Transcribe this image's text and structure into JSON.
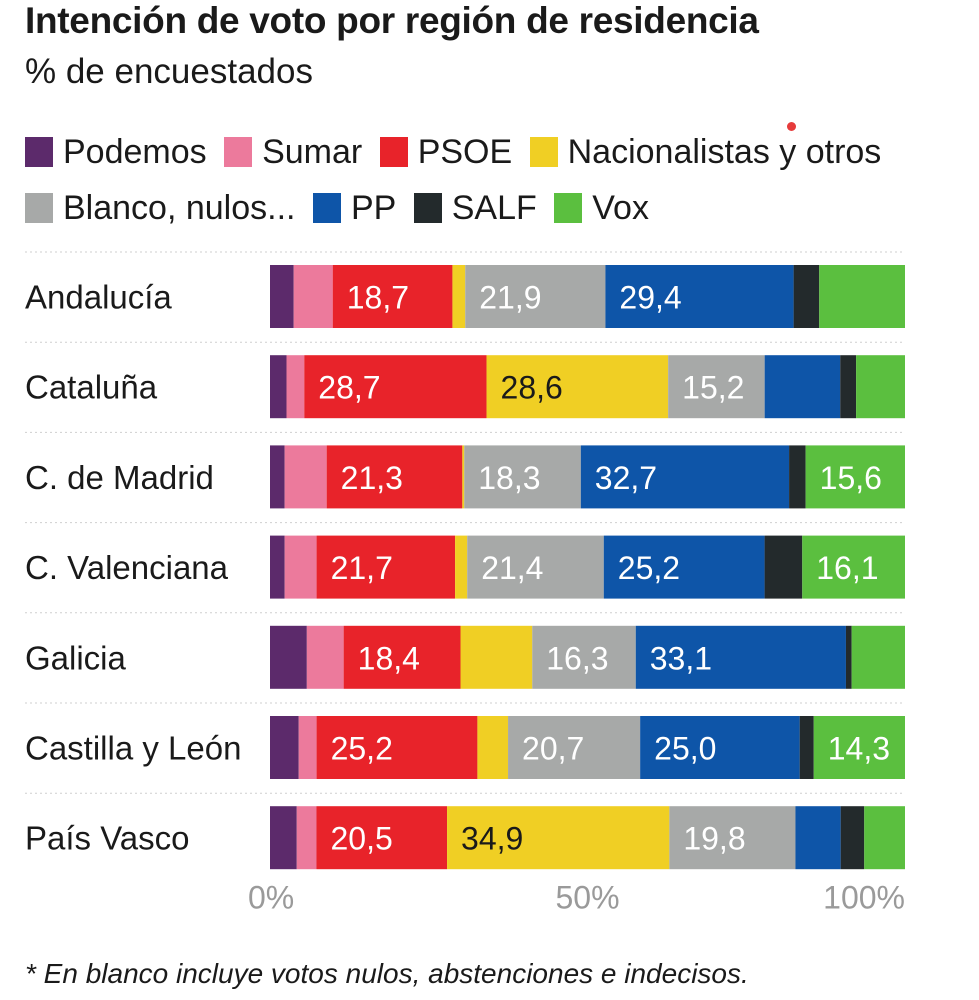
{
  "title": "Intención de voto por región de residencia",
  "subtitle": "% de encuestados",
  "footnote": "* En blanco incluye votos nulos, abstenciones e indecisos.",
  "legend": [
    {
      "label": "Podemos",
      "color": "#5c2a6b"
    },
    {
      "label": "Sumar",
      "color": "#ec7a9c"
    },
    {
      "label": "PSOE",
      "color": "#e8232a"
    },
    {
      "label": "Nacionalistas y otros",
      "color": "#f0cf24"
    },
    {
      "label": "Blanco, nulos...",
      "color": "#a7a9a8"
    },
    {
      "label": "PP",
      "color": "#0e55a8"
    },
    {
      "label": "SALF",
      "color": "#232a2c"
    },
    {
      "label": "Vox",
      "color": "#5bbf3f"
    }
  ],
  "chart_data": {
    "type": "bar",
    "orientation": "horizontal",
    "stacked": true,
    "title": "Intención de voto por región de residencia",
    "subtitle": "% de encuestados",
    "categories": [
      "Andalucía",
      "Cataluña",
      "C. de Madrid",
      "C. Valenciana",
      "Galicia",
      "Castilla y León",
      "País Vasco"
    ],
    "xlim": [
      0,
      100
    ],
    "ticks": [
      0,
      50,
      100
    ],
    "tick_labels": [
      "0%",
      "50%",
      "100%"
    ],
    "series": [
      {
        "name": "Podemos",
        "color": "#5c2a6b",
        "values": [
          3.7,
          2.6,
          2.3,
          2.3,
          5.8,
          4.5,
          4.2
        ]
      },
      {
        "name": "Sumar",
        "color": "#ec7a9c",
        "values": [
          6.1,
          2.8,
          6.6,
          5.0,
          5.8,
          2.8,
          3.1
        ]
      },
      {
        "name": "PSOE",
        "color": "#e8232a",
        "values": [
          18.7,
          28.7,
          21.3,
          21.7,
          18.4,
          25.2,
          20.5
        ]
      },
      {
        "name": "Nacionalistas y otros",
        "color": "#f0cf24",
        "values": [
          2.0,
          28.6,
          0.3,
          1.9,
          11.3,
          4.8,
          34.9
        ]
      },
      {
        "name": "Blanco, nulos...",
        "color": "#a7a9a8",
        "values": [
          21.9,
          15.2,
          18.3,
          21.4,
          16.3,
          20.7,
          19.8
        ]
      },
      {
        "name": "PP",
        "color": "#0e55a8",
        "values": [
          29.4,
          11.9,
          32.7,
          25.2,
          33.1,
          25.0,
          7.1
        ]
      },
      {
        "name": "SALF",
        "color": "#232a2c",
        "values": [
          4.0,
          2.5,
          2.6,
          5.9,
          0.9,
          2.2,
          3.7
        ]
      },
      {
        "name": "Vox",
        "color": "#5bbf3f",
        "values": [
          13.4,
          7.7,
          15.6,
          16.1,
          8.4,
          14.3,
          6.4
        ]
      }
    ],
    "data_labels": [
      [
        null,
        null,
        "18,7",
        null,
        "21,9",
        "29,4",
        null,
        null
      ],
      [
        null,
        null,
        "28,7",
        "28,6",
        "15,2",
        null,
        null,
        null
      ],
      [
        null,
        null,
        "21,3",
        null,
        "18,3",
        "32,7",
        null,
        "15,6"
      ],
      [
        null,
        null,
        "21,7",
        null,
        "21,4",
        "25,2",
        null,
        "16,1"
      ],
      [
        null,
        null,
        "18,4",
        null,
        "16,3",
        "33,1",
        null,
        null
      ],
      [
        null,
        null,
        "25,2",
        null,
        "20,7",
        "25,0",
        null,
        "14,3"
      ],
      [
        null,
        null,
        "20,5",
        "34,9",
        "19,8",
        null,
        null,
        null
      ]
    ],
    "label_colors": [
      "#ffffff",
      "#ffffff",
      "#ffffff",
      "#1a1a1a",
      "#ffffff",
      "#ffffff",
      "#ffffff",
      "#ffffff"
    ]
  }
}
